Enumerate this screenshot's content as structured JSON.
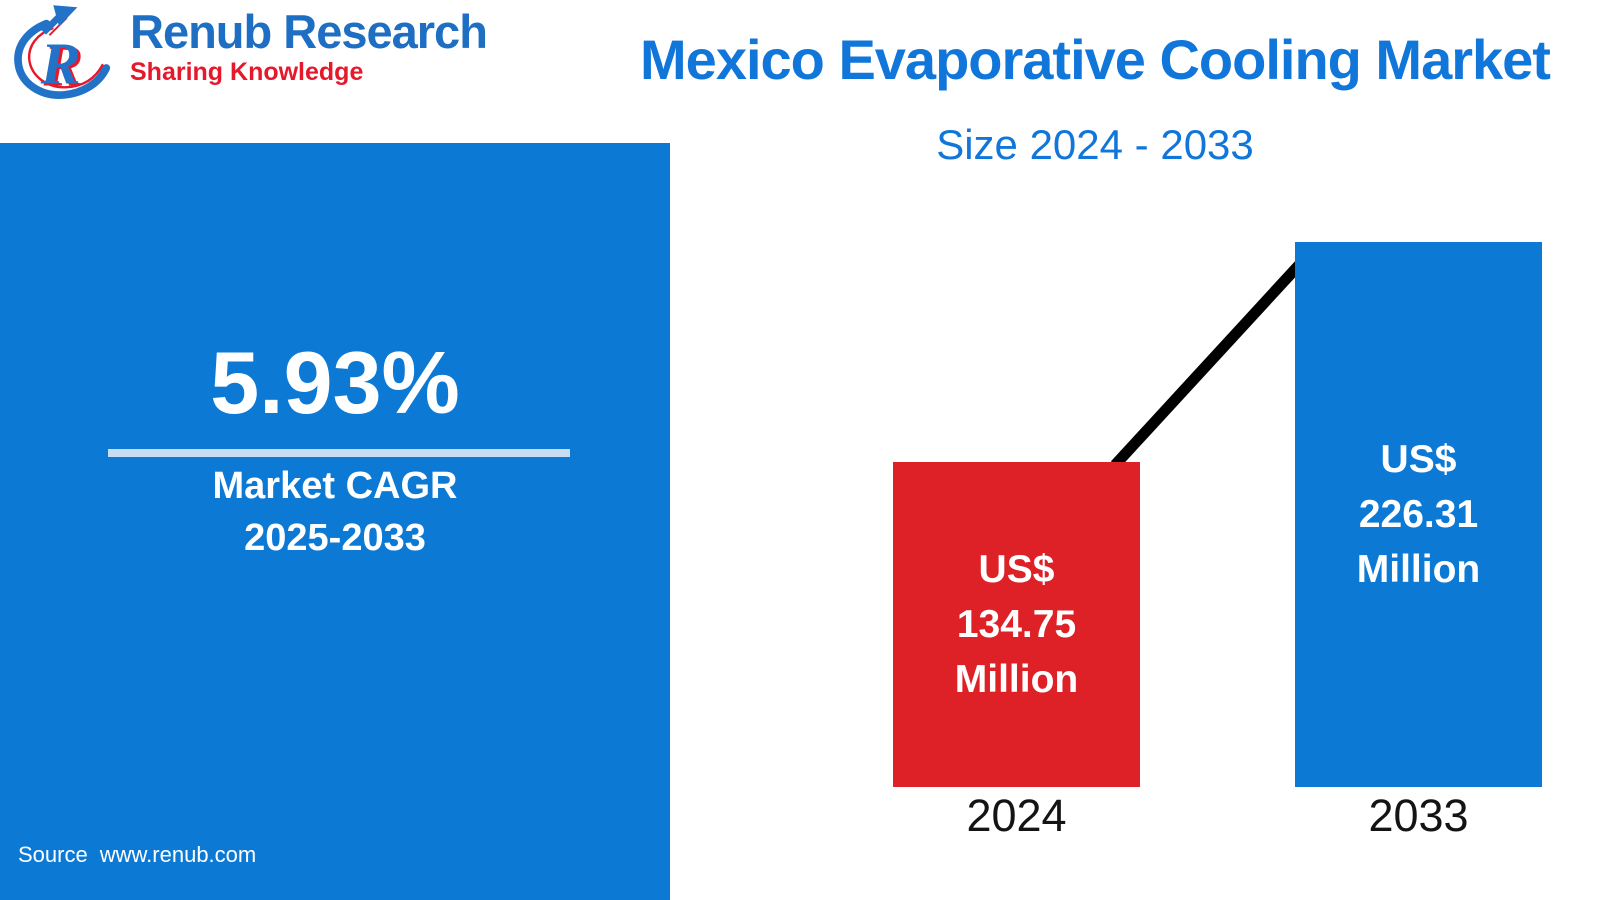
{
  "brand": {
    "name": "Renub Research",
    "tagline": "Sharing Knowledge",
    "logo_icon": "renub-circle-arrow-r-logo"
  },
  "header": {
    "title": "Mexico Evaporative Cooling Market",
    "subtitle": "Size 2024 - 2033"
  },
  "cagr_panel": {
    "value": "5.93%",
    "label_line1": "Market CAGR",
    "label_line2": "2025-2033"
  },
  "source": {
    "label": "Source",
    "url": "www.renub.com"
  },
  "chart_data": {
    "type": "bar",
    "title": "Mexico Evaporative Cooling Market Size 2024 - 2033",
    "unit": "US$ Million",
    "categories": [
      "2024",
      "2033"
    ],
    "values": [
      134.75,
      226.31
    ],
    "series": [
      {
        "name": "Market Size (US$ Million)",
        "values": [
          134.75,
          226.31
        ]
      }
    ],
    "bars": [
      {
        "category": "2024",
        "value": 134.75,
        "label_lines": [
          "US$",
          "134.75",
          "Million"
        ],
        "color": "#dd2127"
      },
      {
        "category": "2033",
        "value": 226.31,
        "label_lines": [
          "US$",
          "226.31",
          "Million"
        ],
        "color": "#0c7ad5"
      }
    ],
    "connector_line_color": "#000000",
    "cagr": "5.93%",
    "cagr_period": "2025-2033",
    "legend": false,
    "axes_visible": false,
    "ylim": [
      0,
      240
    ]
  },
  "colors": {
    "accent_blue": "#0c7ad5",
    "accent_red": "#dd2127",
    "title_blue": "#1176d9",
    "brand_blue": "#1e6fc3",
    "brand_red": "#e6182c",
    "divider_light_blue": "#c9ddf2",
    "connector_black": "#000000"
  }
}
